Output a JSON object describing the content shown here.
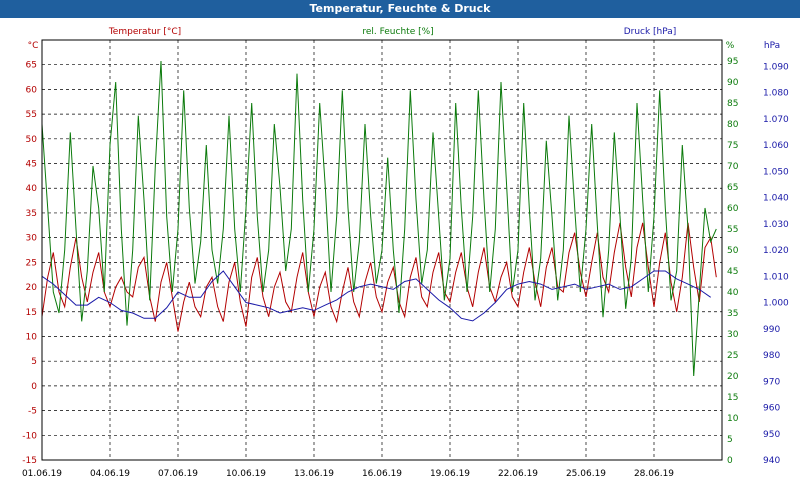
{
  "window": {
    "title": "Temperatur, Feuchte & Druck"
  },
  "colors": {
    "temperature": "#b30000",
    "humidity": "#0b7a0b",
    "pressure": "#1a1aa8",
    "grid": "#000000",
    "titlebar": "#1f5f9e"
  },
  "chart_data": {
    "type": "line",
    "title": "Temperatur, Feuchte & Druck",
    "grid": true,
    "legend_placement": "top",
    "xlabel": "",
    "x_tick_labels": [
      "01.06.19",
      "04.06.19",
      "07.06.19",
      "10.06.19",
      "13.06.19",
      "16.06.19",
      "19.06.19",
      "22.06.19",
      "25.06.19",
      "28.06.19"
    ],
    "x_range": [
      "01.06.19",
      "30.06.19"
    ],
    "axes": {
      "temperature": {
        "label": "Temperatur [°C]",
        "unit": "°C",
        "range": [
          -15,
          70
        ],
        "ticks": [
          "-15",
          "-10",
          "-5",
          "0",
          "5",
          "10",
          "15",
          "20",
          "25",
          "30",
          "35",
          "40",
          "45",
          "50",
          "55",
          "60",
          "65"
        ]
      },
      "humidity": {
        "label": "rel. Feuchte [%]",
        "unit": "%",
        "range": [
          0,
          100
        ],
        "ticks": [
          "0",
          "5",
          "10",
          "15",
          "20",
          "25",
          "30",
          "35",
          "40",
          "45",
          "50",
          "55",
          "60",
          "65",
          "70",
          "75",
          "80",
          "85",
          "90",
          "95"
        ]
      },
      "pressure": {
        "label": "Druck [hPa]",
        "unit": "hPa",
        "range": [
          940,
          1100
        ],
        "ticks": [
          "940",
          "950",
          "960",
          "970",
          "980",
          "990",
          "1.000",
          "1.010",
          "1.020",
          "1.030",
          "1.040",
          "1.050",
          "1.060",
          "1.070",
          "1.080",
          "1.090"
        ]
      }
    },
    "series": [
      {
        "name": "Temperatur [°C]",
        "axis": "temperature",
        "x": [
          0,
          0.25,
          0.5,
          0.75,
          1,
          1.25,
          1.5,
          1.75,
          2,
          2.25,
          2.5,
          2.75,
          3,
          3.25,
          3.5,
          3.75,
          4,
          4.25,
          4.5,
          4.75,
          5,
          5.25,
          5.5,
          5.75,
          6,
          6.25,
          6.5,
          6.75,
          7,
          7.25,
          7.5,
          7.75,
          8,
          8.25,
          8.5,
          8.75,
          9,
          9.25,
          9.5,
          9.75,
          10,
          10.25,
          10.5,
          10.75,
          11,
          11.25,
          11.5,
          11.75,
          12,
          12.25,
          12.5,
          12.75,
          13,
          13.25,
          13.5,
          13.75,
          14,
          14.25,
          14.5,
          14.75,
          15,
          15.25,
          15.5,
          15.75,
          16,
          16.25,
          16.5,
          16.75,
          17,
          17.25,
          17.5,
          17.75,
          18,
          18.25,
          18.5,
          18.75,
          19,
          19.25,
          19.5,
          19.75,
          20,
          20.25,
          20.5,
          20.75,
          21,
          21.25,
          21.5,
          21.75,
          22,
          22.25,
          22.5,
          22.75,
          23,
          23.25,
          23.5,
          23.75,
          24,
          24.25,
          24.5,
          24.75,
          25,
          25.25,
          25.5,
          25.75,
          26,
          26.25,
          26.5,
          26.75,
          27,
          27.25,
          27.5,
          27.75,
          28,
          28.25,
          28.5,
          28.75,
          29,
          29.25,
          29.5,
          29.75
        ],
        "values": [
          14,
          22,
          27,
          19,
          16,
          24,
          30,
          22,
          17,
          23,
          27,
          19,
          16,
          20,
          22,
          19,
          18,
          24,
          26,
          18,
          13,
          21,
          25,
          18,
          11,
          17,
          21,
          16,
          14,
          20,
          22,
          16,
          13,
          21,
          25,
          17,
          12,
          22,
          26,
          18,
          14,
          20,
          23,
          17,
          15,
          22,
          27,
          19,
          14,
          20,
          23,
          16,
          13,
          19,
          24,
          17,
          14,
          21,
          25,
          18,
          15,
          21,
          24,
          17,
          14,
          22,
          26,
          18,
          16,
          23,
          27,
          19,
          17,
          23,
          27,
          20,
          16,
          23,
          28,
          20,
          17,
          22,
          25,
          18,
          16,
          23,
          28,
          21,
          16,
          24,
          28,
          20,
          19,
          27,
          31,
          23,
          18,
          25,
          31,
          22,
          19,
          27,
          33,
          24,
          18,
          28,
          33,
          24,
          16,
          25,
          31,
          21,
          15,
          22,
          33,
          24,
          17,
          28,
          30,
          22
        ],
        "color": "#b30000"
      },
      {
        "name": "rel. Feuchte [%]",
        "axis": "humidity",
        "x": [
          0,
          0.25,
          0.5,
          0.75,
          1,
          1.25,
          1.5,
          1.75,
          2,
          2.25,
          2.5,
          2.75,
          3,
          3.25,
          3.5,
          3.75,
          4,
          4.25,
          4.5,
          4.75,
          5,
          5.25,
          5.5,
          5.75,
          6,
          6.25,
          6.5,
          6.75,
          7,
          7.25,
          7.5,
          7.75,
          8,
          8.25,
          8.5,
          8.75,
          9,
          9.25,
          9.5,
          9.75,
          10,
          10.25,
          10.5,
          10.75,
          11,
          11.25,
          11.5,
          11.75,
          12,
          12.25,
          12.5,
          12.75,
          13,
          13.25,
          13.5,
          13.75,
          14,
          14.25,
          14.5,
          14.75,
          15,
          15.25,
          15.5,
          15.75,
          16,
          16.25,
          16.5,
          16.75,
          17,
          17.25,
          17.5,
          17.75,
          18,
          18.25,
          18.5,
          18.75,
          19,
          19.25,
          19.5,
          19.75,
          20,
          20.25,
          20.5,
          20.75,
          21,
          21.25,
          21.5,
          21.75,
          22,
          22.25,
          22.5,
          22.75,
          23,
          23.25,
          23.5,
          23.75,
          24,
          24.25,
          24.5,
          24.75,
          25,
          25.25,
          25.5,
          25.75,
          26,
          26.25,
          26.5,
          26.75,
          27,
          27.25,
          27.5,
          27.75,
          28,
          28.25,
          28.5,
          28.75,
          29,
          29.25,
          29.5,
          29.75
        ],
        "values": [
          80,
          60,
          40,
          35,
          50,
          78,
          55,
          33,
          45,
          70,
          60,
          40,
          75,
          90,
          55,
          32,
          50,
          82,
          62,
          38,
          70,
          95,
          58,
          40,
          55,
          88,
          60,
          42,
          52,
          75,
          50,
          42,
          55,
          82,
          55,
          40,
          60,
          85,
          58,
          40,
          50,
          80,
          65,
          45,
          55,
          92,
          62,
          40,
          55,
          85,
          65,
          40,
          58,
          88,
          60,
          40,
          52,
          80,
          58,
          42,
          50,
          72,
          50,
          35,
          55,
          88,
          62,
          42,
          50,
          78,
          58,
          38,
          48,
          85,
          60,
          40,
          58,
          88,
          62,
          40,
          55,
          90,
          65,
          40,
          50,
          85,
          60,
          38,
          48,
          76,
          58,
          38,
          50,
          82,
          60,
          40,
          55,
          80,
          56,
          34,
          50,
          78,
          58,
          36,
          48,
          85,
          62,
          40,
          58,
          88,
          60,
          38,
          45,
          75,
          55,
          20,
          40,
          60,
          52,
          55
        ],
        "color": "#0b7a0b"
      },
      {
        "name": "Druck [hPa]",
        "axis": "pressure",
        "x": [
          0,
          0.5,
          1,
          1.5,
          2,
          2.5,
          3,
          3.5,
          4,
          4.5,
          5,
          5.5,
          6,
          6.5,
          7,
          7.5,
          8,
          8.5,
          9,
          9.5,
          10,
          10.5,
          11,
          11.5,
          12,
          12.5,
          13,
          13.5,
          14,
          14.5,
          15,
          15.5,
          16,
          16.5,
          17,
          17.5,
          18,
          18.5,
          19,
          19.5,
          20,
          20.5,
          21,
          21.5,
          22,
          22.5,
          23,
          23.5,
          24,
          24.5,
          25,
          25.5,
          26,
          26.5,
          27,
          27.5,
          28,
          28.5,
          29,
          29.5
        ],
        "values": [
          1010,
          1007,
          1003,
          999,
          999,
          1002,
          1000,
          997,
          996,
          994,
          994,
          998,
          1004,
          1002,
          1002,
          1008,
          1012,
          1006,
          1000,
          999,
          998,
          996,
          997,
          998,
          997,
          999,
          1001,
          1004,
          1006,
          1007,
          1006,
          1005,
          1008,
          1009,
          1005,
          1001,
          998,
          994,
          993,
          996,
          1000,
          1005,
          1007,
          1008,
          1007,
          1005,
          1006,
          1007,
          1005,
          1006,
          1007,
          1005,
          1006,
          1009,
          1012,
          1012,
          1009,
          1007,
          1005,
          1002
        ],
        "color": "#1a1aa8"
      }
    ]
  }
}
